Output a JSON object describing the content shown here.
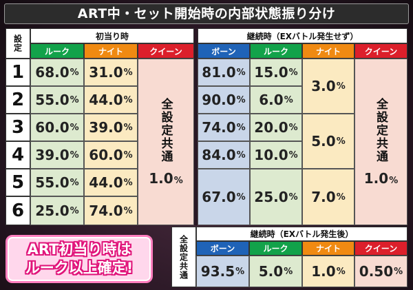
{
  "title": "ART中・セット開始時の内部状態振り分け",
  "setting_label": "設定",
  "first_hit": {
    "header": "初当り時",
    "columns": [
      "ルーク",
      "ナイト",
      "クイーン"
    ],
    "common_label": "全設定共通",
    "queen_common": {
      "value": "1.0",
      "unit": "%"
    }
  },
  "continuation": {
    "header": "継続時（EXバトル発生せず）",
    "columns": [
      "ボーン",
      "ルーク",
      "ナイト",
      "クイーン"
    ],
    "common_label": "全設定共通",
    "queen_common": {
      "value": "1.0",
      "unit": "%"
    },
    "knight_groups": [
      {
        "value": "3.0",
        "unit": "%"
      },
      {
        "value": "5.0",
        "unit": "%"
      },
      {
        "value": "7.0",
        "unit": "%"
      }
    ]
  },
  "rows": [
    {
      "setting": "1",
      "fh_rook": "68.0",
      "fh_knight": "31.0",
      "ct_pawn": "81.0",
      "ct_rook": "15.0"
    },
    {
      "setting": "2",
      "fh_rook": "55.0",
      "fh_knight": "44.0",
      "ct_pawn": "90.0",
      "ct_rook": "6.0"
    },
    {
      "setting": "3",
      "fh_rook": "60.0",
      "fh_knight": "39.0",
      "ct_pawn": "74.0",
      "ct_rook": "20.0"
    },
    {
      "setting": "4",
      "fh_rook": "39.0",
      "fh_knight": "60.0",
      "ct_pawn": "84.0",
      "ct_rook": "10.0"
    },
    {
      "setting": "5",
      "fh_rook": "55.0",
      "fh_knight": "44.0",
      "ct_pawn": "67.0",
      "ct_rook": "25.0"
    },
    {
      "setting": "6",
      "fh_rook": "25.0",
      "fh_knight": "74.0"
    }
  ],
  "pct_unit": "%",
  "ex_battle": {
    "side_label": "全設定共通",
    "header": "継続時（EXバトル発生後）",
    "columns": [
      "ボーン",
      "ルーク",
      "ナイト",
      "クイーン"
    ],
    "values": [
      "93.5",
      "5.0",
      "1.0",
      "0.50"
    ]
  },
  "promo": {
    "line1": "ART初当り時は",
    "line2": "ルーク以上確定!"
  }
}
